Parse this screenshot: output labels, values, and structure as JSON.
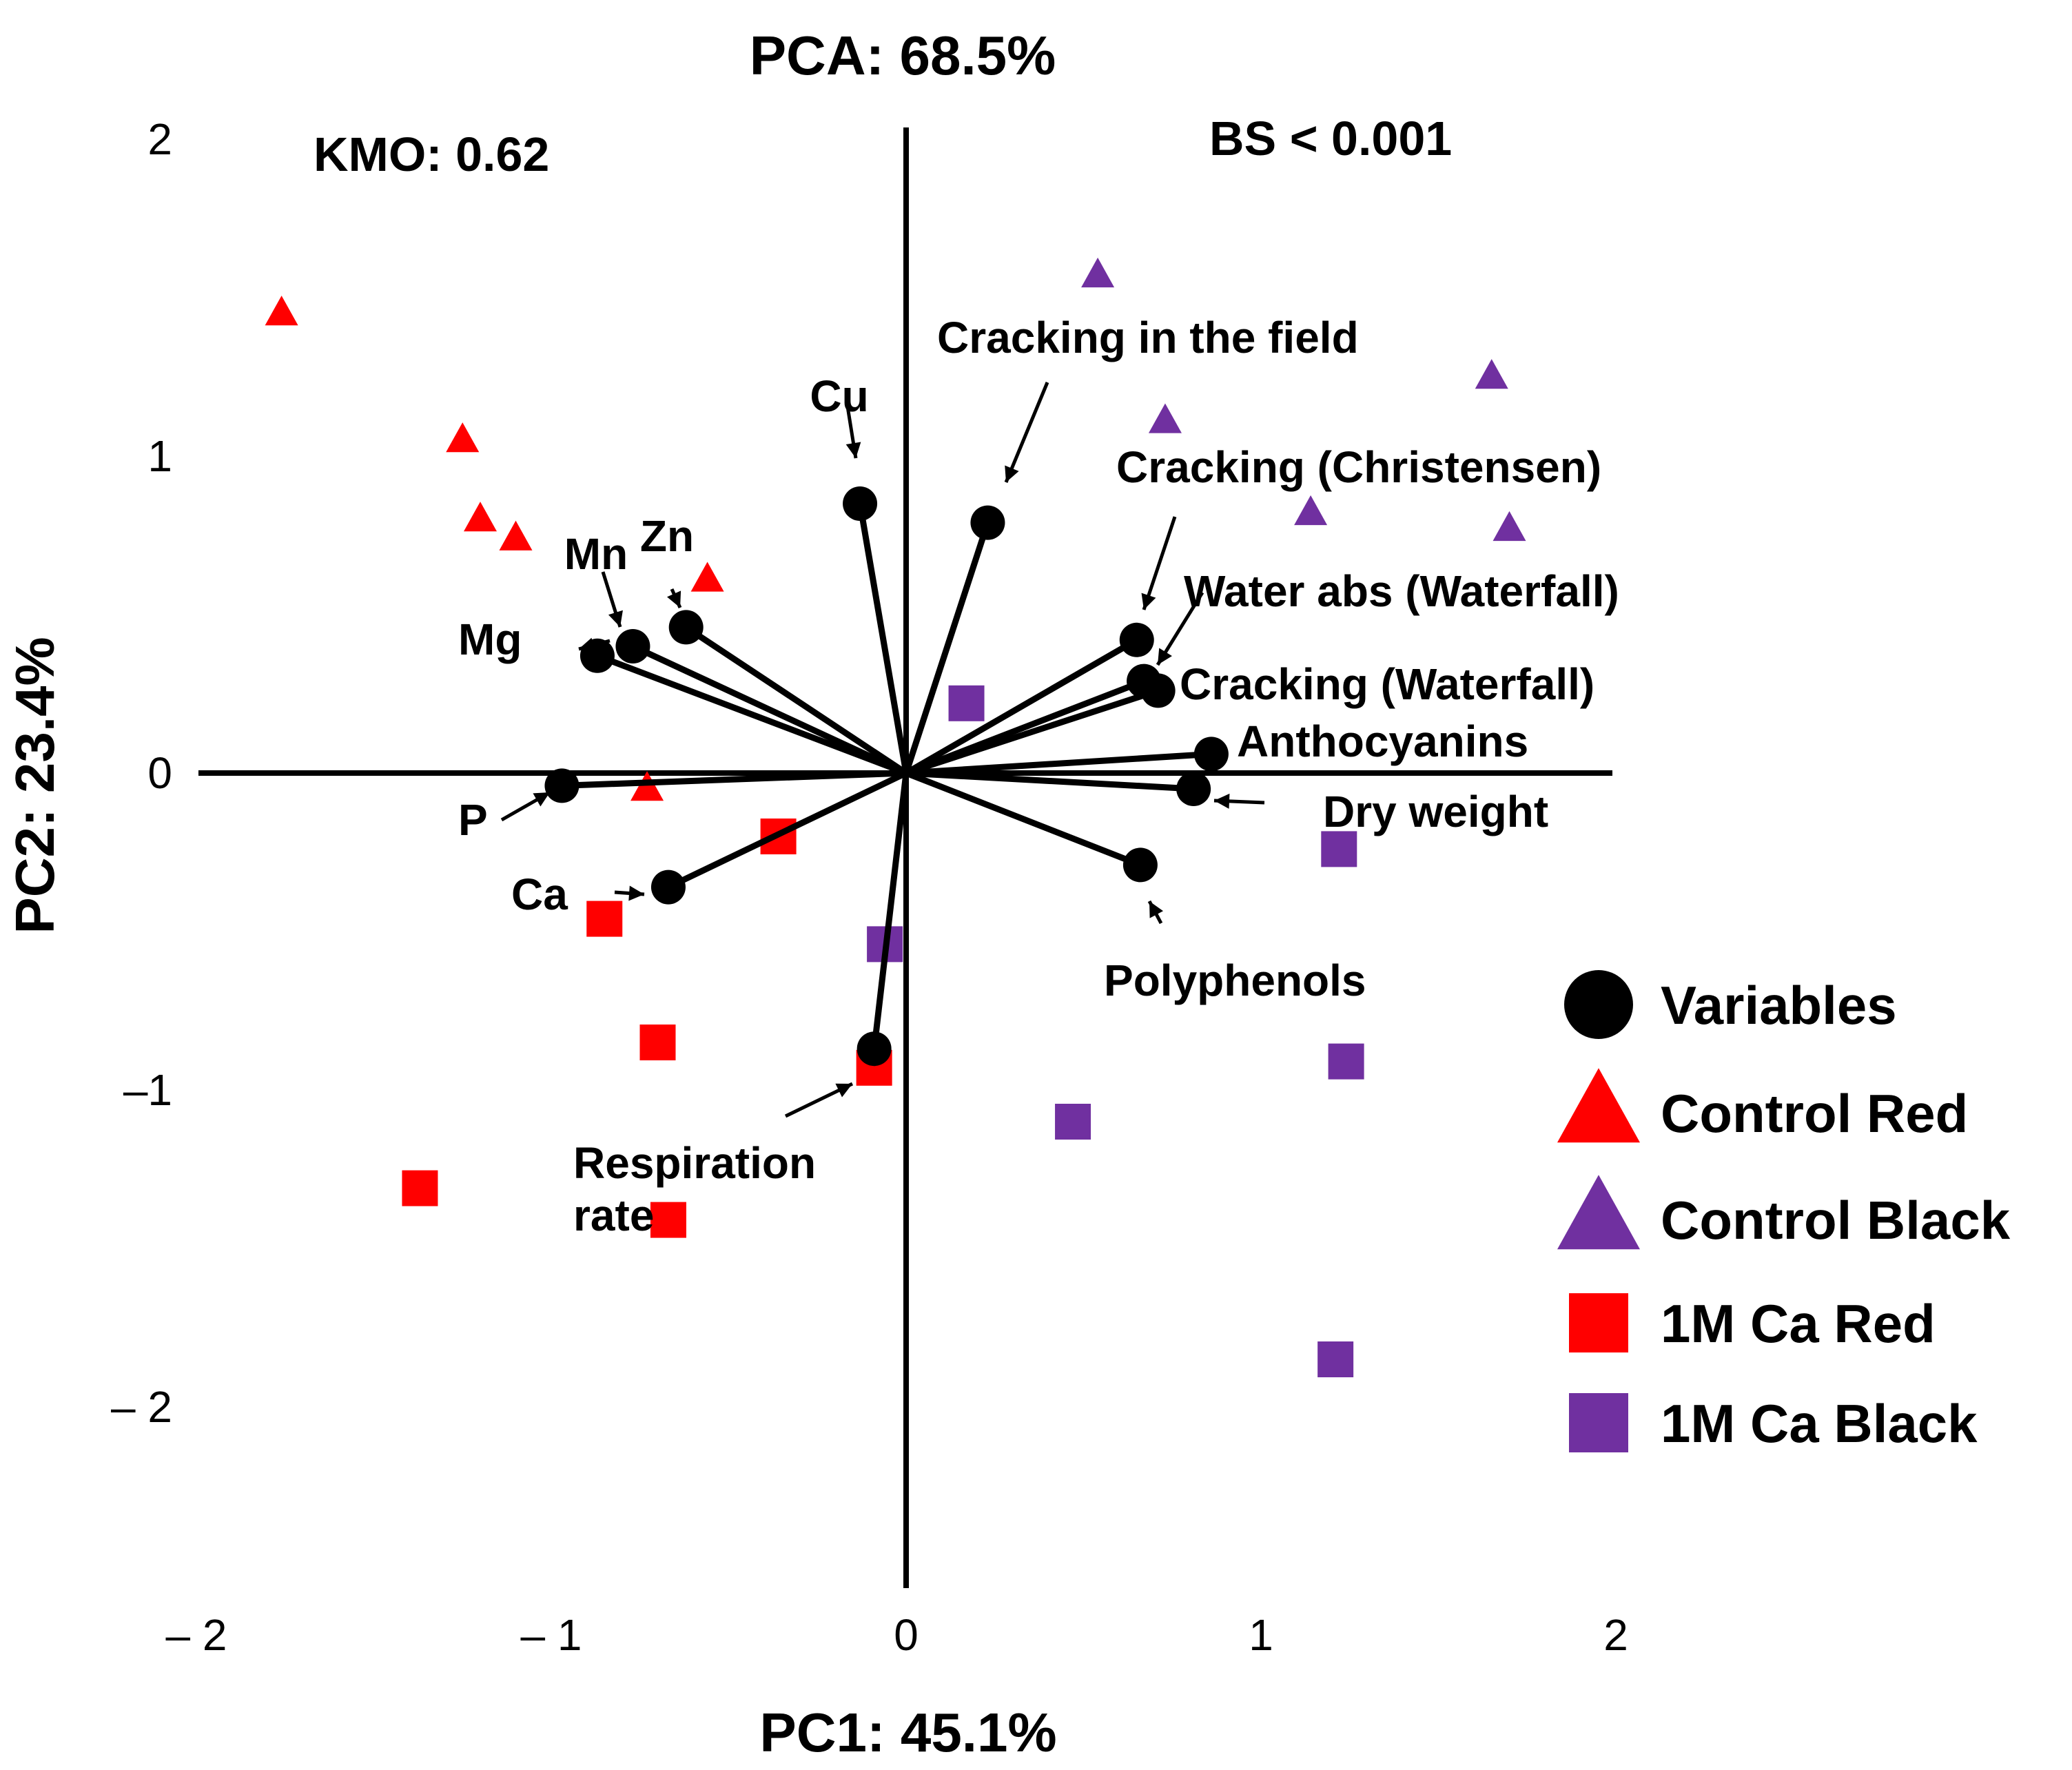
{
  "chart_data": {
    "type": "scatter",
    "title": "PCA: 68.5%",
    "xlabel": "PC1: 45.1%",
    "ylabel": "PC2: 23.4%",
    "annotations": {
      "kmo": "KMO: 0.62",
      "bartlett": "BS < 0.001"
    },
    "xlim": [
      -2,
      2
    ],
    "ylim": [
      -2.4,
      2.1
    ],
    "x_ticks": [
      {
        "value": -2,
        "label": "– 2"
      },
      {
        "value": -1,
        "label": "– 1"
      },
      {
        "value": 0,
        "label": "0"
      },
      {
        "value": 1,
        "label": "1"
      },
      {
        "value": 2,
        "label": "2"
      }
    ],
    "y_ticks": [
      {
        "value": 2,
        "label": "2"
      },
      {
        "value": 1,
        "label": "1"
      },
      {
        "value": 0,
        "label": "0"
      },
      {
        "value": -1,
        "label": "–1"
      },
      {
        "value": -2,
        "label": "– 2"
      }
    ],
    "loadings": [
      {
        "name": "Cu",
        "x": -0.13,
        "y": 0.85
      },
      {
        "name": "Cracking in the field",
        "x": 0.23,
        "y": 0.79
      },
      {
        "name": "Zn",
        "x": -0.62,
        "y": 0.46
      },
      {
        "name": "Mn",
        "x": -0.77,
        "y": 0.4
      },
      {
        "name": "Mg",
        "x": -0.87,
        "y": 0.37
      },
      {
        "name": "Cracking (Christensen)",
        "x": 0.65,
        "y": 0.42
      },
      {
        "name": "Water abs (Waterfall)",
        "x": 0.67,
        "y": 0.29
      },
      {
        "name": "Cracking (Waterfall)",
        "x": 0.71,
        "y": 0.26
      },
      {
        "name": "Anthocyanins",
        "x": 0.86,
        "y": 0.06
      },
      {
        "name": "Dry weight",
        "x": 0.81,
        "y": -0.05
      },
      {
        "name": "P",
        "x": -0.97,
        "y": -0.04
      },
      {
        "name": "Polyphenols",
        "x": 0.66,
        "y": -0.29
      },
      {
        "name": "Ca",
        "x": -0.67,
        "y": -0.36
      },
      {
        "name": "Respiration rate",
        "x": -0.09,
        "y": -0.87
      }
    ],
    "series": [
      {
        "name": "Control Red",
        "marker": "triangle",
        "color": "#ff0000",
        "points": [
          [
            -1.76,
            1.45
          ],
          [
            -1.25,
            1.05
          ],
          [
            -1.2,
            0.8
          ],
          [
            -1.1,
            0.74
          ],
          [
            -0.56,
            0.61
          ],
          [
            -0.73,
            -0.05
          ]
        ]
      },
      {
        "name": "Control Black",
        "marker": "triangle",
        "color": "#7030a0",
        "points": [
          [
            0.54,
            1.57
          ],
          [
            0.73,
            1.11
          ],
          [
            1.14,
            0.82
          ],
          [
            1.65,
            1.25
          ],
          [
            1.7,
            0.77
          ]
        ]
      },
      {
        "name": "1M Ca Red",
        "marker": "square",
        "color": "#ff0000",
        "points": [
          [
            -0.36,
            -0.2
          ],
          [
            -0.85,
            -0.46
          ],
          [
            -0.7,
            -0.85
          ],
          [
            -0.09,
            -0.93
          ],
          [
            -1.37,
            -1.31
          ],
          [
            -0.67,
            -1.41
          ]
        ]
      },
      {
        "name": "1M Ca Black",
        "marker": "square",
        "color": "#7030a0",
        "points": [
          [
            0.17,
            0.22
          ],
          [
            -0.06,
            -0.54
          ],
          [
            1.22,
            -0.24
          ],
          [
            1.24,
            -0.91
          ],
          [
            0.47,
            -1.1
          ],
          [
            1.21,
            -1.85
          ]
        ]
      }
    ],
    "legend": {
      "position": "right",
      "items": [
        {
          "label": "Variables",
          "marker": "circle",
          "color": "#000000"
        },
        {
          "label": "Control Red",
          "marker": "triangle",
          "color": "#ff0000"
        },
        {
          "label": "Control Black",
          "marker": "triangle",
          "color": "#7030a0"
        },
        {
          "label": "1M Ca Red",
          "marker": "square",
          "color": "#ff0000"
        },
        {
          "label": "1M Ca Black",
          "marker": "square",
          "color": "#7030a0"
        }
      ]
    }
  }
}
